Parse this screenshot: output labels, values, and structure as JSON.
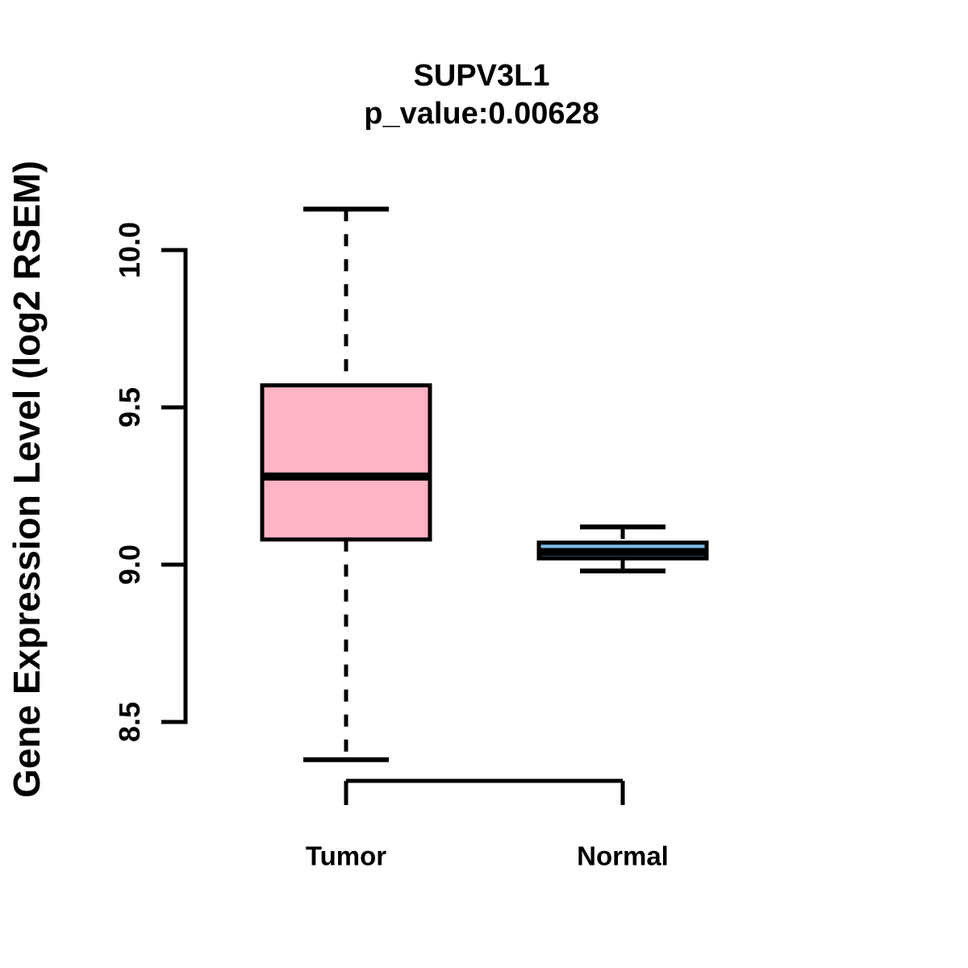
{
  "chart_data": {
    "type": "boxplot",
    "title": "SUPV3L1",
    "subtitle": "p_value:0.00628",
    "p_value": 0.00628,
    "ylabel": "Gene Expression Level (log2 RSEM)",
    "xlabel": "",
    "categories": [
      "Tumor",
      "Normal"
    ],
    "yticks": [
      8.5,
      9.0,
      9.5,
      10.0
    ],
    "ytick_labels": [
      "8.5",
      "9.0",
      "9.5",
      "10.0"
    ],
    "ylim": [
      8.25,
      10.2
    ],
    "grid": false,
    "legend": null,
    "whisker_line_style": "dashed",
    "line_color": "#000000",
    "background_color": "#FFFFFF",
    "boxes": [
      {
        "category": "Tumor",
        "lower_whisker": 8.38,
        "q1": 9.08,
        "median": 9.28,
        "q3": 9.57,
        "upper_whisker": 10.13,
        "fill_color": "#FFB3C3"
      },
      {
        "category": "Normal",
        "lower_whisker": 8.98,
        "q1": 9.02,
        "median": 9.04,
        "q3": 9.07,
        "upper_whisker": 9.12,
        "fill_color": "#7DBCEA"
      }
    ]
  }
}
